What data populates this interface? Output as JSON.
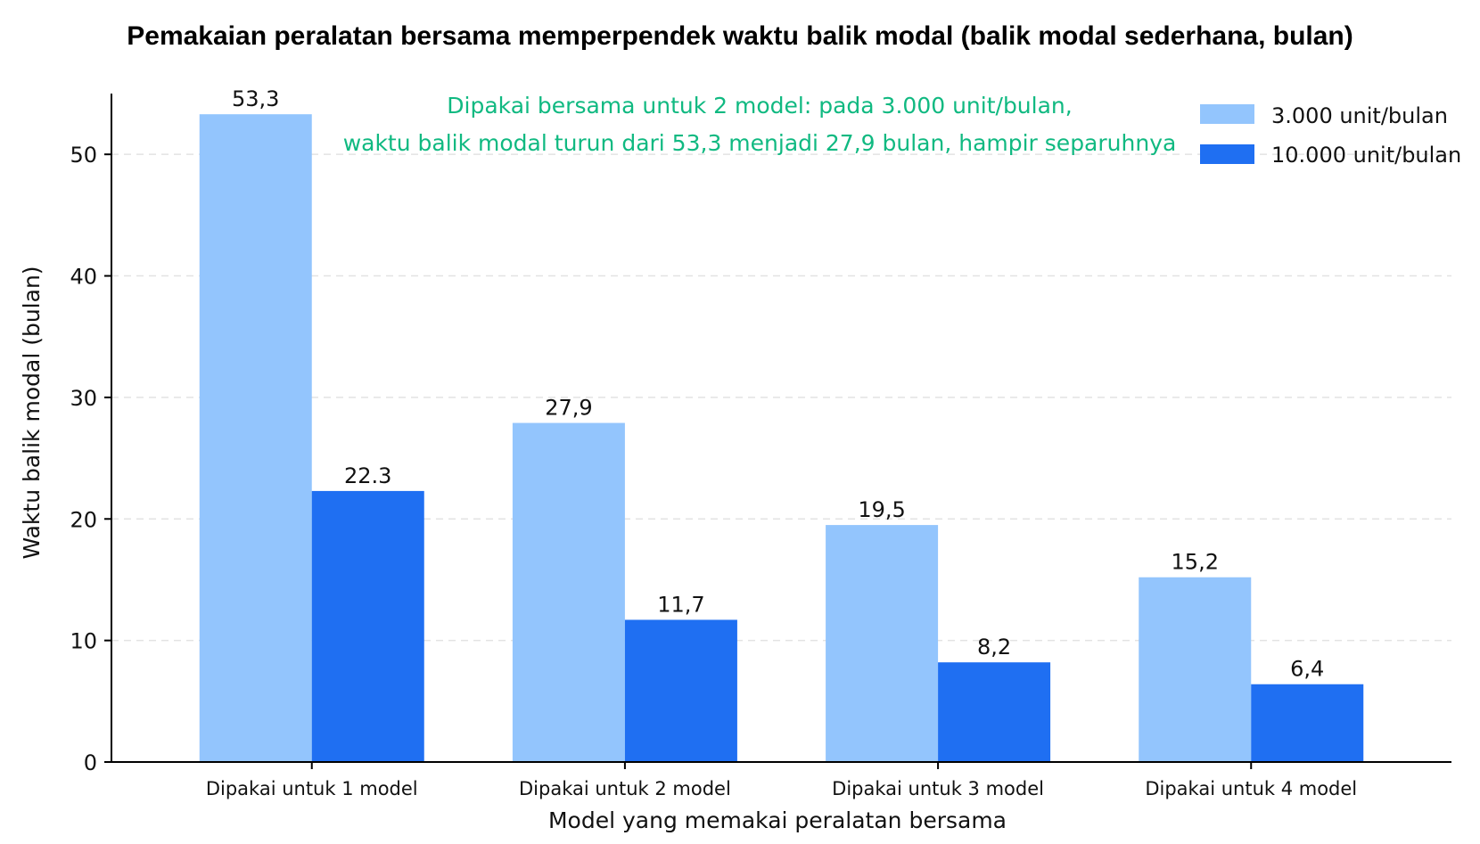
{
  "chart_data": {
    "type": "bar",
    "title": "Pemakaian peralatan bersama memperpendek waktu balik modal (balik modal sederhana, bulan)",
    "xlabel": "Model yang memakai peralatan bersama",
    "ylabel": "Waktu balik modal (bulan)",
    "categories": [
      "Dipakai untuk 1 model",
      "Dipakai untuk 2 model",
      "Dipakai untuk 3 model",
      "Dipakai untuk 4 model"
    ],
    "series": [
      {
        "name": "3.000 unit/bulan",
        "color": "#93c5fd",
        "values": [
          53.3,
          27.9,
          19.5,
          15.2
        ],
        "labels": [
          "53,3",
          "27,9",
          "19,5",
          "15,2"
        ]
      },
      {
        "name": "10.000 unit/bulan",
        "color": "#1f6ff2",
        "values": [
          22.3,
          11.7,
          8.2,
          6.4
        ],
        "labels": [
          "22.3",
          "11,7",
          "8,2",
          "6,4"
        ]
      }
    ],
    "ylim": [
      0,
      55
    ],
    "yticks": [
      0,
      10,
      20,
      30,
      40,
      50
    ],
    "grid": "horizontal dashed",
    "legend_position": "top-right",
    "annotation": {
      "lines": [
        "Dipakai bersama untuk 2 model: pada 3.000 unit/bulan,",
        "waktu balik modal turun dari 53,3 menjadi 27,9 bulan, hampir separuhnya"
      ],
      "color": "#10b981"
    }
  }
}
